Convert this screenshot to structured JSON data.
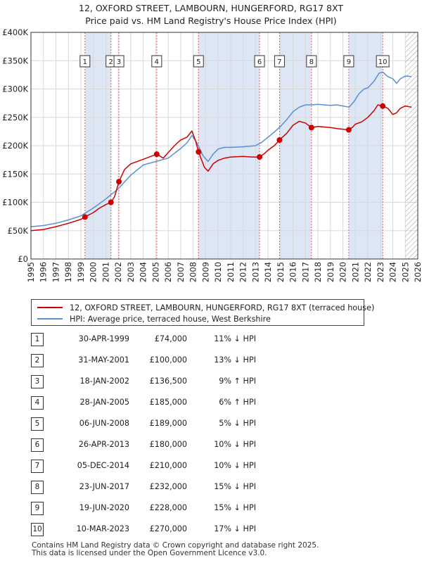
{
  "title": {
    "line1": "12, OXFORD STREET, LAMBOURN, HUNGERFORD, RG17 8XT",
    "line2": "Price paid vs. HM Land Registry's House Price Index (HPI)"
  },
  "colors": {
    "property_line": "#cc0000",
    "hpi_line": "#5b8fd0",
    "shade": "#dde6f4",
    "grid": "#d8d8d8",
    "marker_line": "#e06060"
  },
  "chart_data": {
    "type": "line",
    "title": "Price paid vs. HM Land Registry's House Price Index (HPI)",
    "xlabel": "",
    "ylabel": "",
    "xlim": [
      1995,
      2026
    ],
    "ylim": [
      0,
      400000
    ],
    "y_ticks": [
      0,
      50000,
      100000,
      150000,
      200000,
      250000,
      300000,
      350000,
      400000
    ],
    "y_tick_labels": [
      "£0",
      "£50K",
      "£100K",
      "£150K",
      "£200K",
      "£250K",
      "£300K",
      "£350K",
      "£400K"
    ],
    "x_ticks": [
      1995,
      1996,
      1997,
      1998,
      1999,
      2000,
      2001,
      2002,
      2003,
      2004,
      2005,
      2006,
      2007,
      2008,
      2009,
      2010,
      2011,
      2012,
      2013,
      2014,
      2015,
      2016,
      2017,
      2018,
      2019,
      2020,
      2021,
      2022,
      2023,
      2024,
      2025,
      2026
    ],
    "x_tick_labels": [
      "1995",
      "1996",
      "1997",
      "1998",
      "1999",
      "2000",
      "2001",
      "2002",
      "2003",
      "2004",
      "2005",
      "2006",
      "2007",
      "2008",
      "2009",
      "2010",
      "2011",
      "2012",
      "2013",
      "2014",
      "2015",
      "2016",
      "2017",
      "2018",
      "2019",
      "2020",
      "2021",
      "2022",
      "2023",
      "2024",
      "2025",
      "2026"
    ],
    "grid": true,
    "shaded_ranges": [
      [
        1999.33,
        2001.41
      ],
      [
        2008.43,
        2013.32
      ],
      [
        2014.92,
        2017.48
      ],
      [
        2020.47,
        2023.19
      ]
    ],
    "hatched_range": [
      2025.0,
      2026.0
    ],
    "series": [
      {
        "name": "12, OXFORD STREET, LAMBOURN, HUNGERFORD, RG17 8XT (terraced house)",
        "color": "#cc0000",
        "x": [
          1995.0,
          1996.0,
          1997.0,
          1998.0,
          1999.0,
          1999.33,
          2000.0,
          2000.5,
          2001.0,
          2001.41,
          2001.7,
          2002.05,
          2002.5,
          2003.0,
          2004.0,
          2005.08,
          2005.6,
          2006.0,
          2006.5,
          2007.0,
          2007.5,
          2007.9,
          2008.2,
          2008.43,
          2008.9,
          2009.2,
          2009.6,
          2010.0,
          2010.5,
          2011.0,
          2012.0,
          2012.7,
          2013.32,
          2013.7,
          2014.0,
          2014.5,
          2014.92,
          2015.5,
          2016.0,
          2016.5,
          2017.0,
          2017.48,
          2018.0,
          2019.0,
          2019.6,
          2020.47,
          2020.8,
          2021.0,
          2021.5,
          2022.0,
          2022.5,
          2022.8,
          2023.19,
          2023.6,
          2024.0,
          2024.3,
          2024.6,
          2025.0,
          2025.5
        ],
        "values": [
          50000,
          52000,
          57000,
          63000,
          70000,
          74000,
          82000,
          90000,
          96000,
          100000,
          110000,
          136500,
          158000,
          168000,
          176000,
          185000,
          178000,
          188000,
          200000,
          210000,
          215000,
          226000,
          208000,
          189000,
          162000,
          155000,
          168000,
          174000,
          178000,
          180000,
          181000,
          180000,
          180000,
          186000,
          192000,
          200000,
          210000,
          222000,
          236000,
          243000,
          240000,
          232000,
          234000,
          232000,
          230000,
          228000,
          233000,
          238000,
          242000,
          250000,
          262000,
          272000,
          270000,
          266000,
          255000,
          258000,
          266000,
          270000,
          268000
        ]
      },
      {
        "name": "HPI: Average price, terraced house, West Berkshire",
        "color": "#5b8fd0",
        "x": [
          1995.0,
          1996.0,
          1997.0,
          1998.0,
          1999.0,
          2000.0,
          2001.0,
          2002.0,
          2003.0,
          2004.0,
          2005.0,
          2006.0,
          2007.0,
          2007.5,
          2007.9,
          2008.3,
          2008.8,
          2009.2,
          2009.6,
          2010.0,
          2010.5,
          2011.0,
          2012.0,
          2013.0,
          2013.5,
          2014.0,
          2014.5,
          2015.0,
          2015.5,
          2016.0,
          2016.5,
          2017.0,
          2017.5,
          2018.0,
          2019.0,
          2019.5,
          2020.0,
          2020.5,
          2020.9,
          2021.3,
          2021.7,
          2022.0,
          2022.5,
          2022.9,
          2023.2,
          2023.6,
          2024.0,
          2024.3,
          2024.6,
          2025.0,
          2025.5
        ],
        "values": [
          57000,
          59000,
          63000,
          69000,
          76000,
          90000,
          106000,
          124000,
          148000,
          166000,
          172000,
          178000,
          195000,
          205000,
          218000,
          205000,
          182000,
          172000,
          185000,
          194000,
          197000,
          197000,
          198000,
          200000,
          206000,
          215000,
          224000,
          234000,
          246000,
          260000,
          268000,
          272000,
          272000,
          273000,
          271000,
          272000,
          270000,
          268000,
          278000,
          292000,
          300000,
          302000,
          314000,
          328000,
          330000,
          322000,
          318000,
          310000,
          318000,
          323000,
          322000
        ]
      }
    ],
    "transactions": [
      {
        "label": "1",
        "x": 1999.33,
        "y": 74000
      },
      {
        "label": "2",
        "x": 2001.41,
        "y": 100000
      },
      {
        "label": "3",
        "x": 2002.05,
        "y": 136500
      },
      {
        "label": "4",
        "x": 2005.08,
        "y": 185000
      },
      {
        "label": "5",
        "x": 2008.43,
        "y": 189000
      },
      {
        "label": "6",
        "x": 2013.32,
        "y": 180000
      },
      {
        "label": "7",
        "x": 2014.92,
        "y": 210000
      },
      {
        "label": "8",
        "x": 2017.48,
        "y": 232000
      },
      {
        "label": "9",
        "x": 2020.47,
        "y": 228000
      },
      {
        "label": "10",
        "x": 2023.19,
        "y": 270000
      }
    ]
  },
  "legend": {
    "property": "12, OXFORD STREET, LAMBOURN, HUNGERFORD, RG17 8XT (terraced house)",
    "hpi": "HPI: Average price, terraced house, West Berkshire"
  },
  "table": [
    {
      "num": "1",
      "date": "30-APR-1999",
      "price": "£74,000",
      "hpi": "11% ↓ HPI"
    },
    {
      "num": "2",
      "date": "31-MAY-2001",
      "price": "£100,000",
      "hpi": "13% ↓ HPI"
    },
    {
      "num": "3",
      "date": "18-JAN-2002",
      "price": "£136,500",
      "hpi": "9% ↑ HPI"
    },
    {
      "num": "4",
      "date": "28-JAN-2005",
      "price": "£185,000",
      "hpi": "6% ↑ HPI"
    },
    {
      "num": "5",
      "date": "06-JUN-2008",
      "price": "£189,000",
      "hpi": "5% ↓ HPI"
    },
    {
      "num": "6",
      "date": "26-APR-2013",
      "price": "£180,000",
      "hpi": "10% ↓ HPI"
    },
    {
      "num": "7",
      "date": "05-DEC-2014",
      "price": "£210,000",
      "hpi": "10% ↓ HPI"
    },
    {
      "num": "8",
      "date": "23-JUN-2017",
      "price": "£232,000",
      "hpi": "15% ↓ HPI"
    },
    {
      "num": "9",
      "date": "19-JUN-2020",
      "price": "£228,000",
      "hpi": "15% ↓ HPI"
    },
    {
      "num": "10",
      "date": "10-MAR-2023",
      "price": "£270,000",
      "hpi": "17% ↓ HPI"
    }
  ],
  "footer": {
    "line1": "Contains HM Land Registry data © Crown copyright and database right 2025.",
    "line2": "This data is licensed under the Open Government Licence v3.0."
  }
}
